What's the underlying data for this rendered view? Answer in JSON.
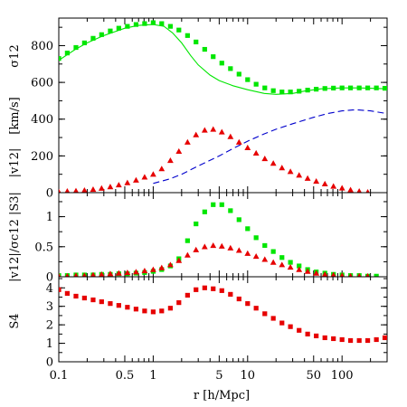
{
  "chart_data": {
    "type": "scatter",
    "x_axis": {
      "label": "r [h/Mpc]",
      "scale": "log",
      "range": [
        0.1,
        300
      ],
      "tick_labels": [
        "0.1",
        "0.5",
        "1",
        "5",
        "10",
        "50",
        "100"
      ],
      "tick_values": [
        0.1,
        0.5,
        1,
        5,
        10,
        50,
        100
      ]
    },
    "panels": [
      {
        "id": "top",
        "ylabel_upper": "σ12",
        "ylabel_unit": "[km/s]",
        "ylabel_lower": "|v12|",
        "ylim": [
          0,
          950
        ],
        "yticks": [
          0,
          200,
          400,
          600,
          800
        ],
        "series": [
          {
            "kind": "points",
            "marker": "square",
            "color": "#00e600",
            "x": [
              0.1,
              0.123,
              0.152,
              0.187,
              0.231,
              0.284,
              0.351,
              0.432,
              0.533,
              0.658,
              0.811,
              1.0,
              1.23,
              1.52,
              1.87,
              2.31,
              2.84,
              3.51,
              4.32,
              5.33,
              6.58,
              8.11,
              10,
              12.3,
              15.2,
              18.7,
              23.1,
              28.4,
              35.1,
              43.2,
              53.3,
              65.8,
              81.1,
              100,
              123,
              152,
              187,
              231,
              284
            ],
            "y": [
              730,
              760,
              790,
              815,
              840,
              860,
              880,
              895,
              905,
              915,
              920,
              925,
              920,
              905,
              885,
              855,
              820,
              780,
              740,
              705,
              675,
              645,
              615,
              590,
              570,
              555,
              548,
              548,
              552,
              558,
              563,
              567,
              569,
              570,
              570,
              570,
              570,
              570,
              568
            ]
          },
          {
            "kind": "line",
            "style": "solid",
            "color": "#00e600",
            "x": [
              0.1,
              0.15,
              0.2,
              0.3,
              0.5,
              0.7,
              1.0,
              1.3,
              1.6,
              2.0,
              2.5,
              3.0,
              4.0,
              5.0,
              7.0,
              10,
              15,
              20,
              30,
              40,
              60,
              100,
              150,
              200,
              300
            ],
            "y": [
              720,
              780,
              815,
              855,
              895,
              910,
              915,
              905,
              870,
              815,
              745,
              695,
              640,
              610,
              582,
              560,
              540,
              535,
              540,
              553,
              565,
              570,
              570,
              568,
              565
            ]
          },
          {
            "kind": "line",
            "style": "dashed",
            "color": "#0000cc",
            "x": [
              1.0,
              1.5,
              2,
              3,
              5,
              7,
              10,
              15,
              20,
              30,
              50,
              70,
              100,
              130,
              150,
              200,
              300
            ],
            "y": [
              50,
              75,
              100,
              145,
              200,
              240,
              280,
              320,
              345,
              375,
              410,
              430,
              445,
              450,
              450,
              445,
              430
            ]
          },
          {
            "kind": "points",
            "marker": "triangle",
            "color": "#e60000",
            "x": [
              0.1,
              0.123,
              0.152,
              0.187,
              0.231,
              0.284,
              0.351,
              0.432,
              0.533,
              0.658,
              0.811,
              1.0,
              1.23,
              1.52,
              1.87,
              2.31,
              2.84,
              3.51,
              4.32,
              5.33,
              6.58,
              8.11,
              10,
              12.3,
              15.2,
              18.7,
              23.1,
              28.4,
              35.1,
              43.2,
              53.3,
              65.8,
              81.1,
              100,
              123,
              152,
              187
            ],
            "y": [
              5,
              8,
              10,
              13,
              18,
              24,
              32,
              42,
              54,
              68,
              85,
              100,
              130,
              175,
              225,
              275,
              315,
              340,
              345,
              330,
              305,
              275,
              245,
              215,
              185,
              160,
              135,
              115,
              95,
              78,
              62,
              48,
              35,
              25,
              15,
              8,
              3
            ]
          }
        ]
      },
      {
        "id": "middle",
        "ylabel": "|v12|/σc12 |S3|",
        "ylim": [
          0,
          1.4
        ],
        "yticks": [
          0,
          0.5,
          1
        ],
        "series": [
          {
            "kind": "points",
            "marker": "square",
            "color": "#00e600",
            "x": [
              0.1,
              0.123,
              0.152,
              0.187,
              0.231,
              0.284,
              0.351,
              0.432,
              0.533,
              0.658,
              0.811,
              1.0,
              1.23,
              1.52,
              1.87,
              2.31,
              2.84,
              3.51,
              4.32,
              5.33,
              6.58,
              8.11,
              10,
              12.3,
              15.2,
              18.7,
              23.1,
              28.4,
              35.1,
              43.2,
              53.3,
              65.8,
              81.1,
              100,
              123,
              152,
              187,
              231
            ],
            "y": [
              0.02,
              0.02,
              0.03,
              0.03,
              0.03,
              0.04,
              0.04,
              0.05,
              0.05,
              0.06,
              0.07,
              0.09,
              0.12,
              0.18,
              0.3,
              0.6,
              0.88,
              1.08,
              1.2,
              1.2,
              1.1,
              0.95,
              0.8,
              0.65,
              0.52,
              0.42,
              0.32,
              0.24,
              0.18,
              0.12,
              0.08,
              0.06,
              0.04,
              0.03,
              0.02,
              0.02,
              0.01,
              0.01
            ]
          },
          {
            "kind": "points",
            "marker": "triangle",
            "color": "#e60000",
            "x": [
              0.1,
              0.123,
              0.152,
              0.187,
              0.231,
              0.284,
              0.351,
              0.432,
              0.533,
              0.658,
              0.811,
              1.0,
              1.23,
              1.52,
              1.87,
              2.31,
              2.84,
              3.51,
              4.32,
              5.33,
              6.58,
              8.11,
              10,
              12.3,
              15.2,
              18.7,
              23.1,
              28.4,
              35.1,
              43.2,
              53.3,
              65.8,
              81.1,
              100,
              123,
              152,
              187
            ],
            "y": [
              0.01,
              0.01,
              0.02,
              0.02,
              0.03,
              0.04,
              0.05,
              0.06,
              0.07,
              0.08,
              0.1,
              0.12,
              0.15,
              0.2,
              0.27,
              0.36,
              0.45,
              0.5,
              0.52,
              0.51,
              0.48,
              0.44,
              0.39,
              0.34,
              0.29,
              0.24,
              0.2,
              0.16,
              0.12,
              0.09,
              0.06,
              0.04,
              0.03,
              0.02,
              0.01,
              0.01,
              0.01
            ]
          }
        ]
      },
      {
        "id": "bottom",
        "ylabel": "S4",
        "ylim": [
          0,
          4.6
        ],
        "yticks": [
          0,
          1,
          2,
          3,
          4
        ],
        "series": [
          {
            "kind": "points",
            "marker": "square",
            "color": "#e60000",
            "x": [
              0.1,
              0.123,
              0.152,
              0.187,
              0.231,
              0.284,
              0.351,
              0.432,
              0.533,
              0.658,
              0.811,
              1.0,
              1.23,
              1.52,
              1.87,
              2.31,
              2.84,
              3.51,
              4.32,
              5.33,
              6.58,
              8.11,
              10,
              12.3,
              15.2,
              18.7,
              23.1,
              28.4,
              35.1,
              43.2,
              53.3,
              65.8,
              81.1,
              100,
              123,
              152,
              187,
              231,
              284
            ],
            "y": [
              3.9,
              3.7,
              3.55,
              3.45,
              3.35,
              3.25,
              3.15,
              3.05,
              2.95,
              2.85,
              2.75,
              2.7,
              2.75,
              2.9,
              3.2,
              3.6,
              3.9,
              4.0,
              3.95,
              3.85,
              3.65,
              3.4,
              3.15,
              2.9,
              2.6,
              2.35,
              2.1,
              1.9,
              1.7,
              1.5,
              1.4,
              1.3,
              1.25,
              1.2,
              1.15,
              1.15,
              1.15,
              1.2,
              1.3
            ]
          }
        ]
      }
    ]
  }
}
